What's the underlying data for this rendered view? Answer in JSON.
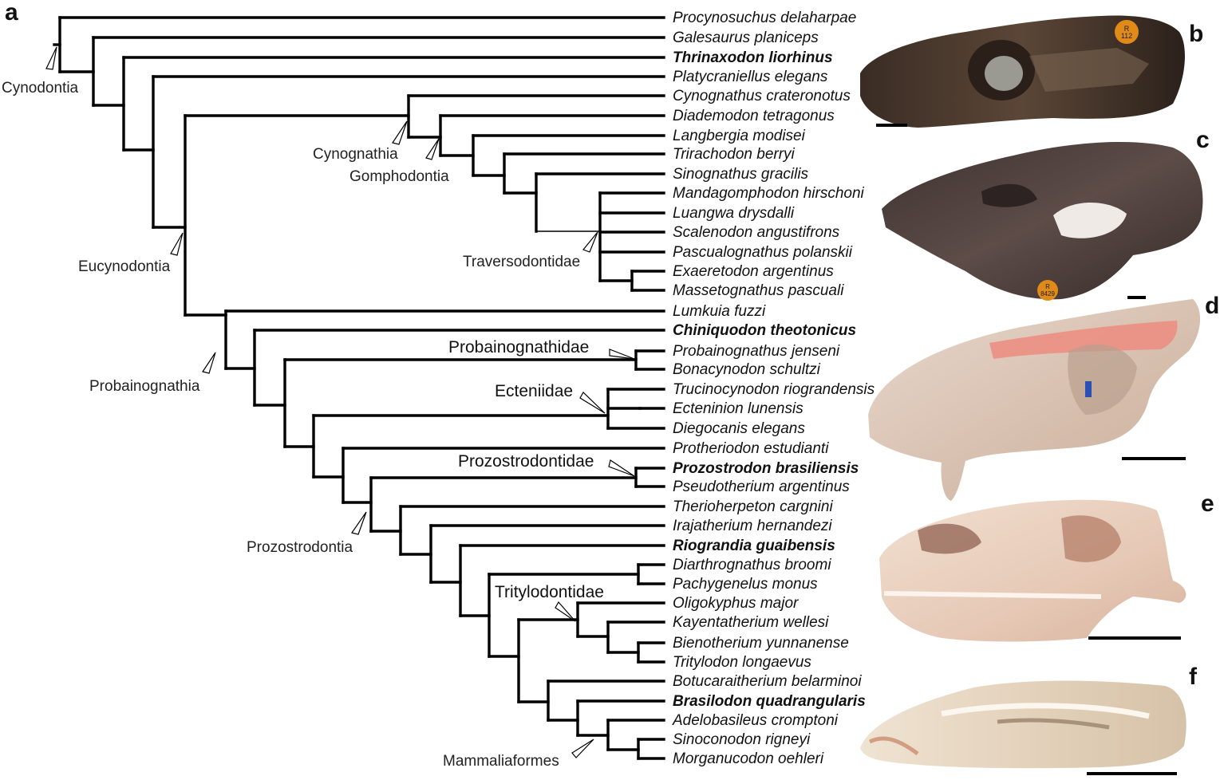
{
  "panels": [
    "a",
    "b",
    "c",
    "d",
    "e",
    "f"
  ],
  "taxa": [
    {
      "name": "Procynosuchus delaharpae",
      "bold": false
    },
    {
      "name": "Galesaurus planiceps",
      "bold": false
    },
    {
      "name": "Thrinaxodon liorhinus",
      "bold": true
    },
    {
      "name": "Platycraniellus elegans",
      "bold": false
    },
    {
      "name": "Cynognathus crateronotus",
      "bold": false
    },
    {
      "name": "Diademodon tetragonus",
      "bold": false
    },
    {
      "name": "Langbergia modisei",
      "bold": false
    },
    {
      "name": "Trirachodon berryi",
      "bold": false
    },
    {
      "name": "Sinognathus gracilis",
      "bold": false
    },
    {
      "name": "Mandagomphodon hirschoni",
      "bold": false
    },
    {
      "name": "Luangwa drysdalli",
      "bold": false
    },
    {
      "name": "Scalenodon angustifrons",
      "bold": false
    },
    {
      "name": "Pascualognathus polanskii",
      "bold": false
    },
    {
      "name": "Exaeretodon argentinus",
      "bold": false
    },
    {
      "name": "Massetognathus pascuali",
      "bold": false
    },
    {
      "name": "Lumkuia fuzzi",
      "bold": false
    },
    {
      "name": "Chiniquodon theotonicus",
      "bold": true
    },
    {
      "name": "Probainognathus jenseni",
      "bold": false
    },
    {
      "name": "Bonacynodon schultzi",
      "bold": false
    },
    {
      "name": "Trucinocynodon riograndensis",
      "bold": false
    },
    {
      "name": "Ecteninion lunensis",
      "bold": false
    },
    {
      "name": "Diegocanis elegans",
      "bold": false
    },
    {
      "name": "Protheriodon estudianti",
      "bold": false
    },
    {
      "name": "Prozostrodon brasiliensis",
      "bold": true
    },
    {
      "name": "Pseudotherium argentinus",
      "bold": false
    },
    {
      "name": "Therioherpeton cargnini",
      "bold": false
    },
    {
      "name": "Irajatherium hernandezi",
      "bold": false
    },
    {
      "name": "Riograndia guaibensis",
      "bold": true
    },
    {
      "name": "Diarthrognathus broomi",
      "bold": false
    },
    {
      "name": "Pachygenelus monus",
      "bold": false
    },
    {
      "name": "Oligokyphus major",
      "bold": false
    },
    {
      "name": "Kayentatherium wellesi",
      "bold": false
    },
    {
      "name": "Bienotherium yunnanense",
      "bold": false
    },
    {
      "name": "Tritylodon longaevus",
      "bold": false
    },
    {
      "name": "Botucaraitherium belarminoi",
      "bold": false
    },
    {
      "name": "Brasilodon quadrangularis",
      "bold": true
    },
    {
      "name": "Adelobasileus cromptoni",
      "bold": false
    },
    {
      "name": "Sinoconodon rigneyi",
      "bold": false
    },
    {
      "name": "Morganucodon oehleri",
      "bold": false
    }
  ],
  "clades": [
    "Cynodontia",
    "Cynognathia",
    "Gomphodontia",
    "Eucynodontia",
    "Traversodontidae",
    "Probainognathia",
    "Probainognathidae",
    "Ecteniidae",
    "Prozostrodontidae",
    "Prozostrodontia",
    "Tritylodontidae",
    "Mammaliaformes"
  ],
  "label_b": "R\n112",
  "label_c": "R\n8429",
  "colors": {
    "branch": "#000000",
    "text": "#111111"
  }
}
